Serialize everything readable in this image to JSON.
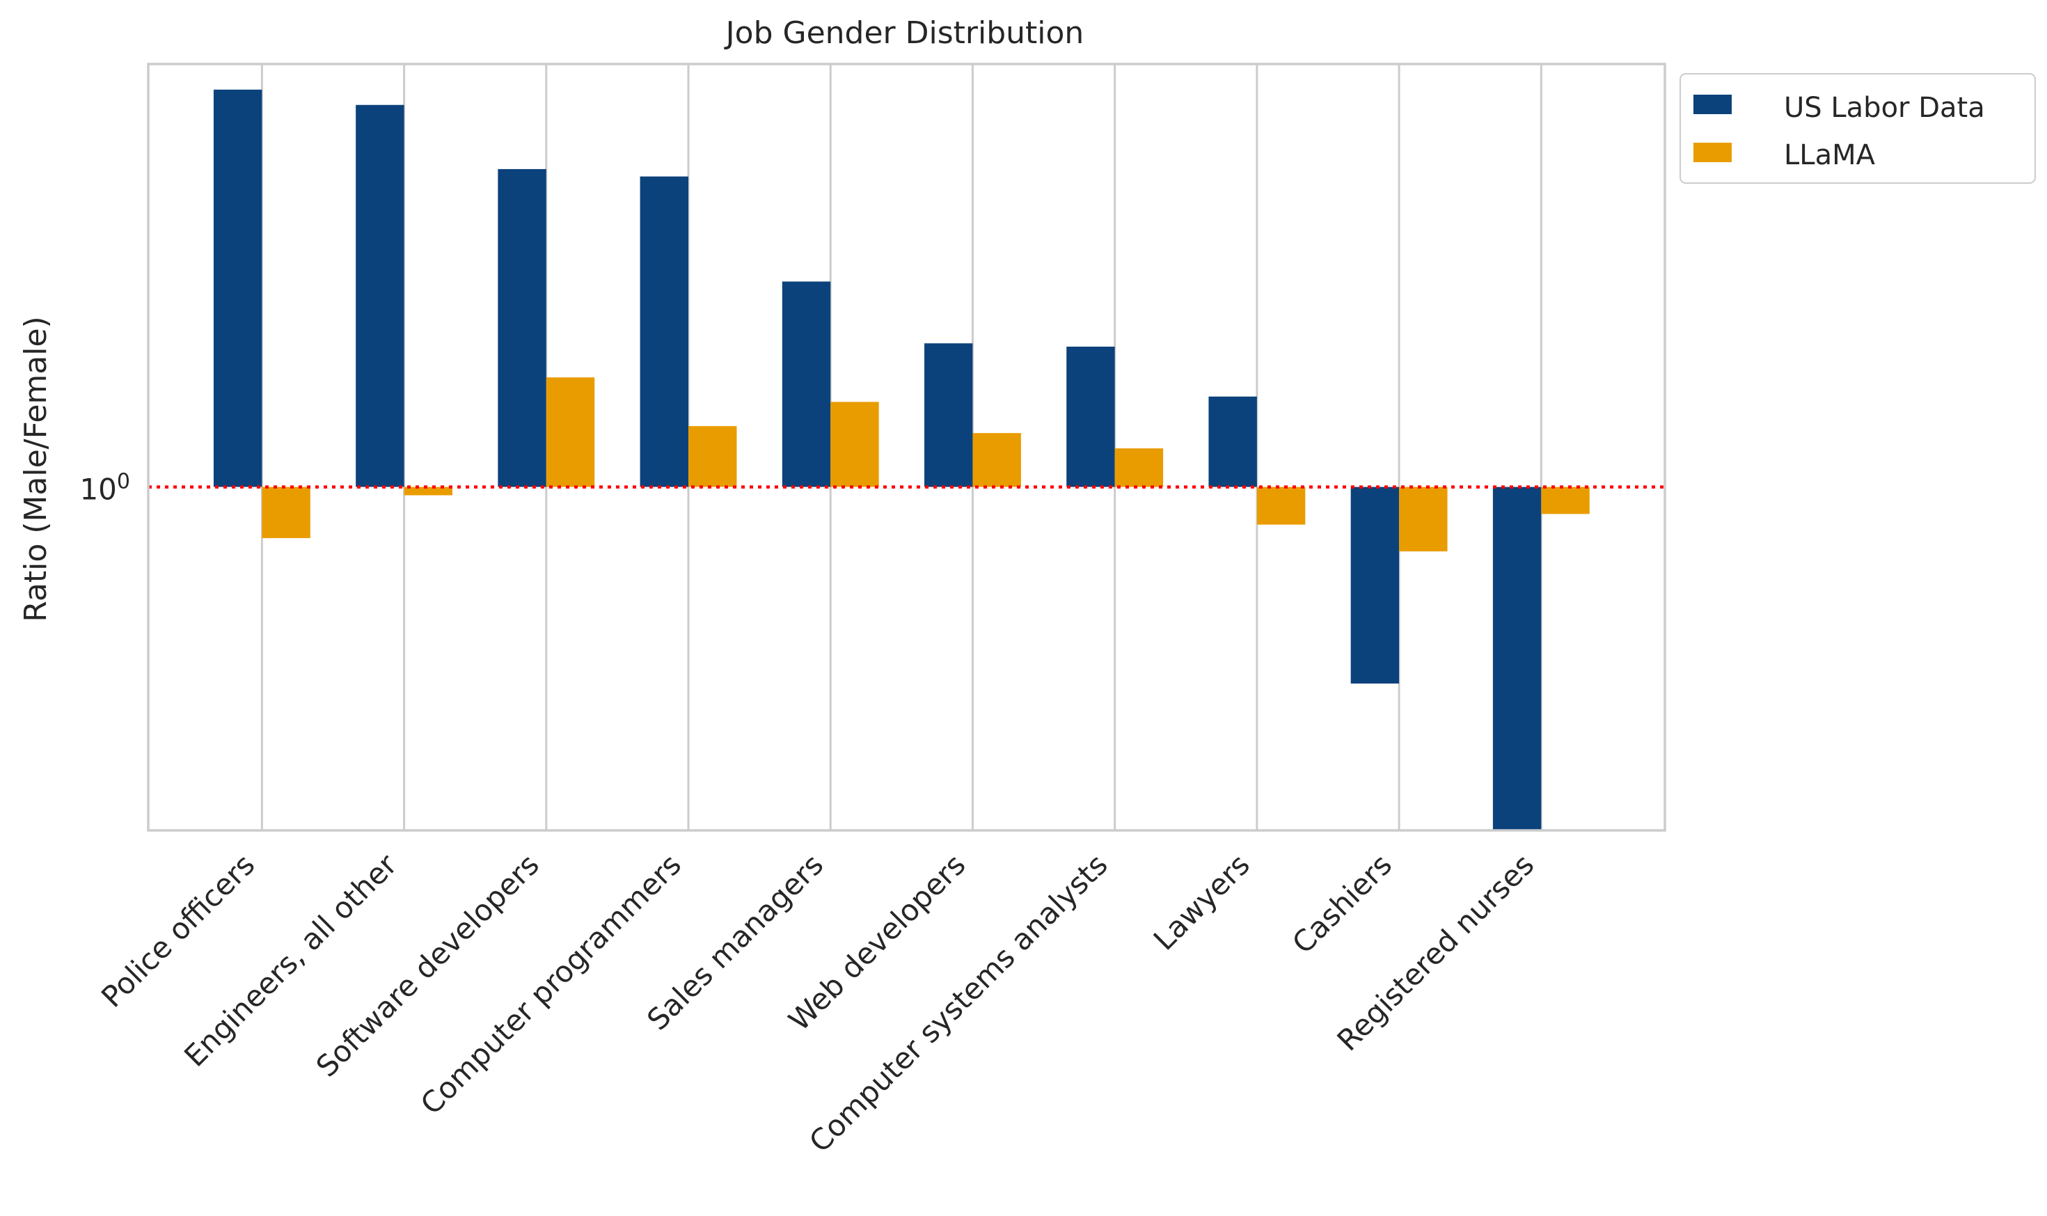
{
  "chart_data": {
    "type": "bar",
    "title": "Job Gender Distribution",
    "ylabel": "Ratio (Male/Female)",
    "xlabel": "",
    "yscale": "log",
    "ytick_base": "10",
    "ytick_exp": "0",
    "ylim": [
      0.05,
      40
    ],
    "reference_line": {
      "y": 1,
      "style": "dotted",
      "color": "#ff0000"
    },
    "grid": "vertical",
    "legend_position": "outside-top-right",
    "categories": [
      "Police officers",
      "Engineers, all other",
      "Software developers",
      "Computer programmers",
      "Sales managers",
      "Web developers",
      "Computer systems analysts",
      "Lawyers",
      "Cashiers",
      "Registered nurses"
    ],
    "series": [
      {
        "name": "US Labor Data",
        "color": "#0c427b",
        "values": [
          32,
          28,
          16,
          15,
          6,
          3.5,
          3.4,
          2.2,
          0.18,
          0.05
        ]
      },
      {
        "name": "LLaMA",
        "color": "#e99c00",
        "values": [
          0.64,
          0.93,
          2.6,
          1.7,
          2.1,
          1.6,
          1.4,
          0.72,
          0.57,
          0.79
        ]
      }
    ]
  }
}
